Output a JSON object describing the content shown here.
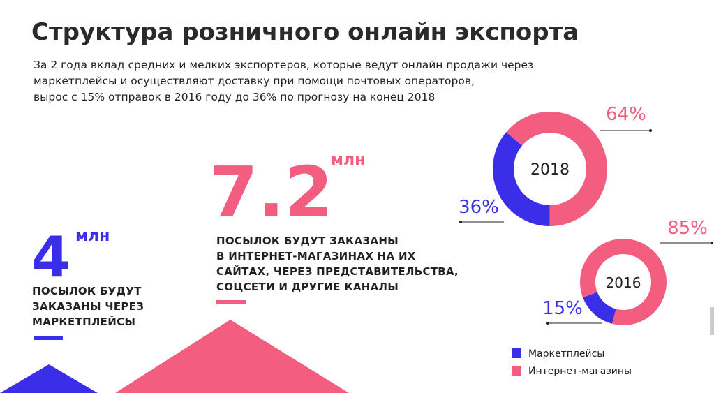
{
  "header": {
    "title": "Структура розничного онлайн экспорта",
    "subtitle_lines": [
      "За 2 года вклад средних и мелких экспортеров, которые ведут онлайн продажи через",
      "маркетплейсы и осуществляют доставку при помощи почтовых операторов,",
      "вырос с 15% отправок в 2016 году до 36% по прогнозу на конец 2018"
    ]
  },
  "stats": [
    {
      "value": 4,
      "unit": "млн",
      "lines": [
        "ПОСЫЛОК БУДУТ",
        "ЗАКАЗАНЫ ЧЕРЕЗ",
        "МАРКЕТПЛЕЙСЫ"
      ]
    },
    {
      "value": 7.2,
      "unit": "млн",
      "lines": [
        "ПОСЫЛОК БУДУТ ЗАКАЗАНЫ",
        "В ИНТЕРНЕТ-МАГАЗИНАХ НА ИХ",
        "САЙТАХ, ЧЕРЕЗ ПРЕДСТАВИТЕЛЬСТВА,",
        "СОЦСЕТИ И ДРУГИЕ КАНАЛЫ"
      ]
    }
  ],
  "chart_data": [
    {
      "type": "donut",
      "title": "2018",
      "categories": [
        "Маркетплейсы",
        "Интернет-магазины"
      ],
      "values": [
        36,
        64
      ],
      "value_labels": [
        "36%",
        "64%"
      ],
      "colors": [
        "#3b2ee8",
        "#f25d80"
      ]
    },
    {
      "type": "donut",
      "title": "2016",
      "categories": [
        "Маркетплейсы",
        "Интернет-магазины"
      ],
      "values": [
        15,
        85
      ],
      "value_labels": [
        "15%",
        "85%"
      ],
      "colors": [
        "#3b2ee8",
        "#f25d80"
      ]
    }
  ]
}
